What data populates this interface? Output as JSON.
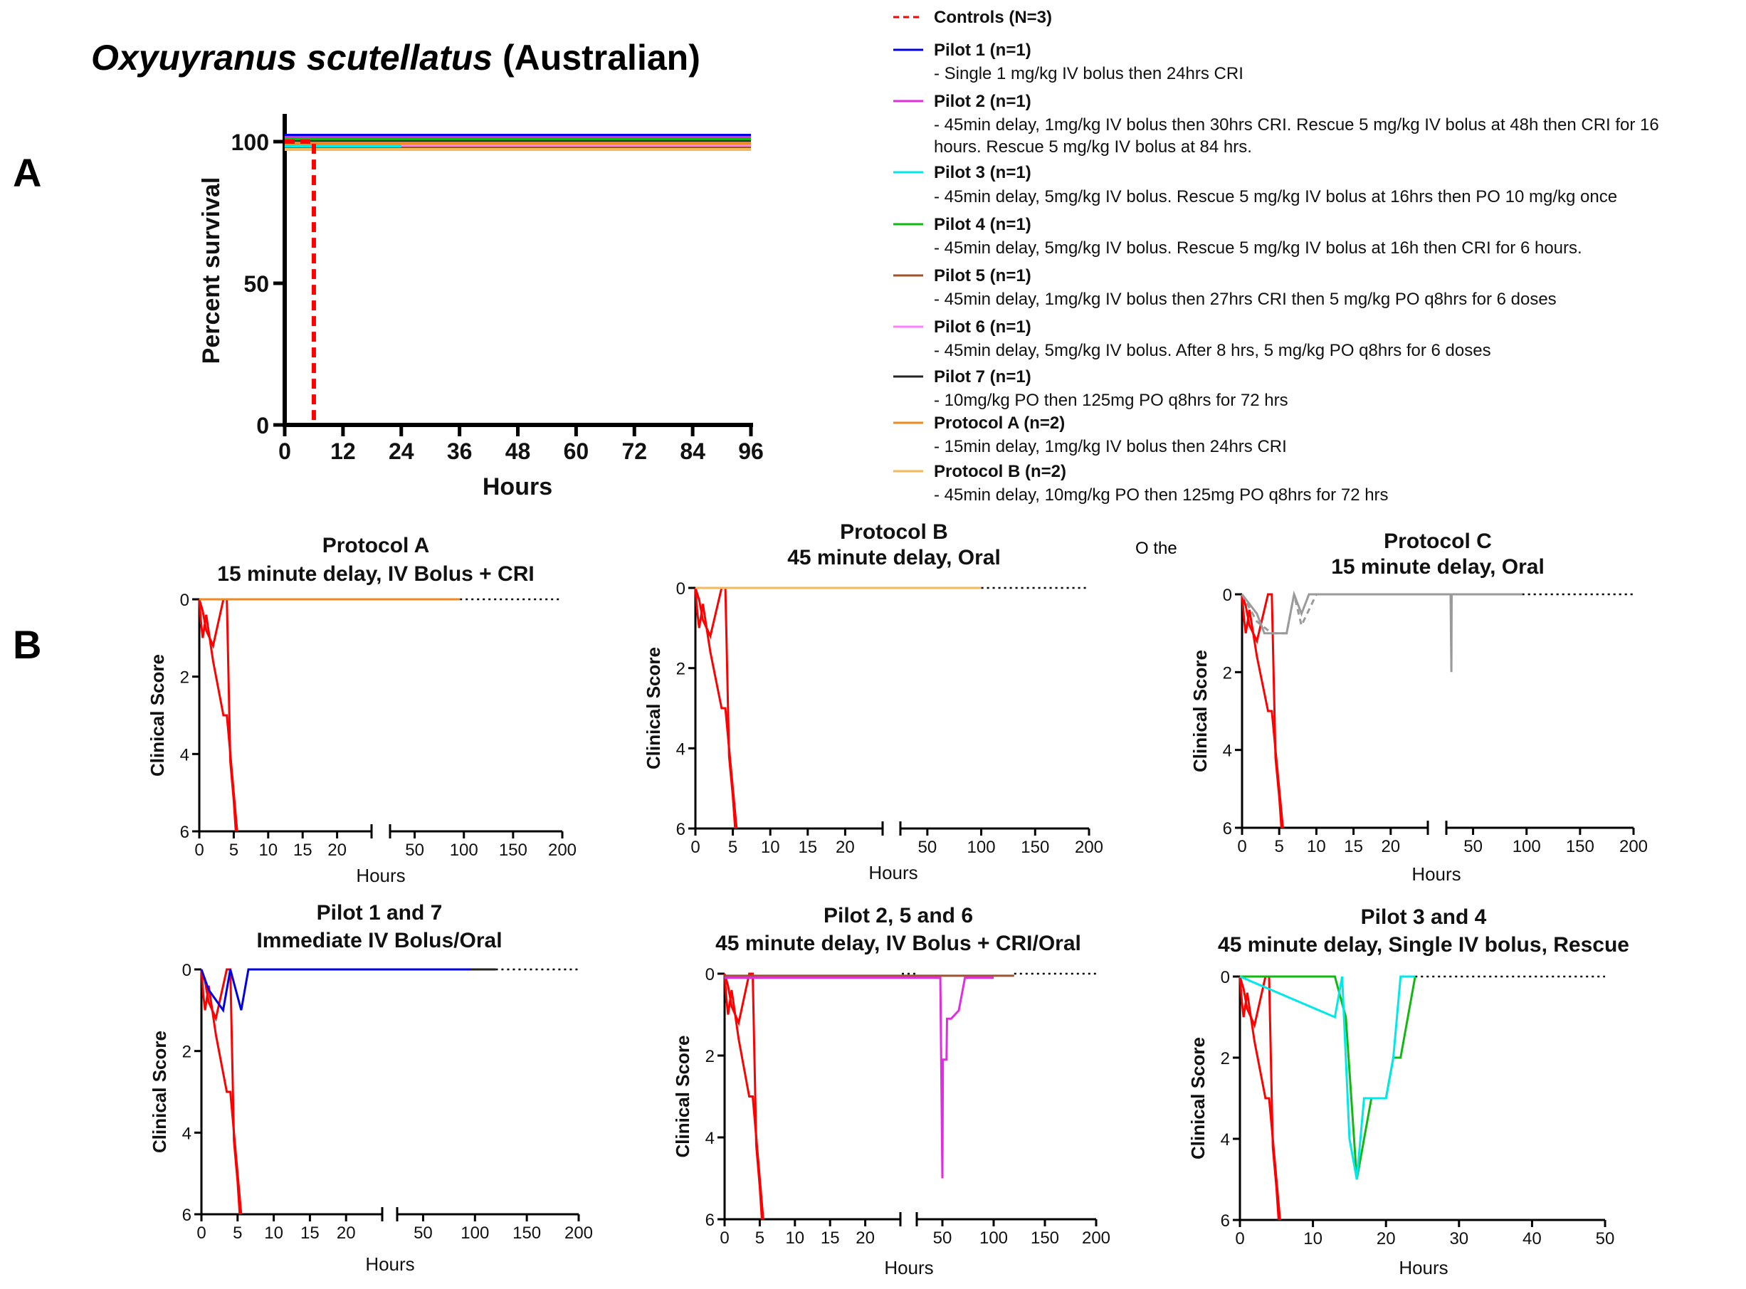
{
  "colors": {
    "controls": "#ff0000",
    "pilot1": "#0000e6",
    "pilot2": "#e02de0",
    "pilot3": "#00e8e8",
    "pilot4": "#12b812",
    "pilot5": "#a0522d",
    "pilot6": "#ff80ff",
    "pilot7": "#222222",
    "protocolA": "#f08a1e",
    "protocolB": "#f5b85a",
    "protocolC": "#9a9a9a"
  },
  "panel_labels": {
    "a": "A",
    "b": "B"
  },
  "title": {
    "species": "Oxyuyranus scutellatus",
    "region": "(Australian)"
  },
  "stray_text": "O the",
  "legend": [
    {
      "key": "controls",
      "name": "Controls (N=3)",
      "detail": [],
      "dashed": true
    },
    {
      "key": "pilot1",
      "name": "Pilot 1 (n=1)",
      "detail": [
        "- Single 1 mg/kg IV bolus then 24hrs CRI"
      ]
    },
    {
      "key": "pilot2",
      "name": "Pilot 2 (n=1)",
      "detail": [
        "- 45min delay, 1mg/kg IV bolus then 30hrs CRI. Rescue 5 mg/kg IV bolus at 48h then CRI for 16",
        "hours. Rescue 5 mg/kg IV bolus at 84 hrs."
      ]
    },
    {
      "key": "pilot3",
      "name": "Pilot 3 (n=1)",
      "detail": [
        "- 45min delay, 5mg/kg IV bolus. Rescue 5 mg/kg IV bolus at 16hrs then PO 10 mg/kg once"
      ]
    },
    {
      "key": "pilot4",
      "name": "Pilot 4 (n=1)",
      "detail": [
        "- 45min delay, 5mg/kg IV bolus. Rescue 5 mg/kg IV bolus at 16h then CRI for 6 hours."
      ]
    },
    {
      "key": "pilot5",
      "name": "Pilot 5 (n=1)",
      "detail": [
        "- 45min delay, 1mg/kg IV bolus then 27hrs CRI then 5 mg/kg PO q8hrs for 6 doses"
      ]
    },
    {
      "key": "pilot6",
      "name": "Pilot 6 (n=1)",
      "detail": [
        "- 45min delay, 5mg/kg IV bolus. After 8 hrs, 5 mg/kg PO q8hrs for 6 doses"
      ]
    },
    {
      "key": "pilot7",
      "name": "Pilot 7 (n=1)",
      "detail": [
        "- 10mg/kg PO then 125mg PO q8hrs for 72 hrs"
      ]
    },
    {
      "key": "protocolA",
      "name": "Protocol A (n=2)",
      "detail": [
        "- 15min delay, 1mg/kg IV bolus then 24hrs CRI"
      ]
    },
    {
      "key": "protocolB",
      "name": "Protocol B (n=2)",
      "detail": [
        "- 45min delay, 10mg/kg PO then 125mg PO q8hrs for 72 hrs"
      ]
    }
  ],
  "chart_data": [
    {
      "id": "survival",
      "type": "line",
      "step": true,
      "title": "Oxyuyranus scutellatus (Australian)",
      "xlabel": "Hours",
      "ylabel": "Percent survival",
      "xlim": [
        0,
        96
      ],
      "ylim": [
        0,
        100
      ],
      "xticks": [
        0,
        12,
        24,
        36,
        48,
        60,
        72,
        84,
        96
      ],
      "yticks": [
        0,
        50,
        100
      ],
      "series": [
        {
          "key": "pilot1",
          "x": [
            0,
            96
          ],
          "y": [
            100,
            100
          ]
        },
        {
          "key": "pilot2",
          "x": [
            0,
            96
          ],
          "y": [
            100,
            100
          ]
        },
        {
          "key": "pilot4",
          "x": [
            0,
            96
          ],
          "y": [
            100,
            100
          ]
        },
        {
          "key": "pilot5",
          "x": [
            0,
            96
          ],
          "y": [
            100,
            100
          ]
        },
        {
          "key": "pilot6",
          "x": [
            0,
            96
          ],
          "y": [
            100,
            100
          ]
        },
        {
          "key": "pilot7",
          "x": [
            0,
            96
          ],
          "y": [
            100,
            100
          ]
        },
        {
          "key": "protocolA",
          "x": [
            0,
            96
          ],
          "y": [
            100,
            100
          ]
        },
        {
          "key": "protocolB",
          "x": [
            0,
            96
          ],
          "y": [
            100,
            100
          ]
        },
        {
          "key": "pilot3",
          "x": [
            0,
            96
          ],
          "y": [
            100,
            100
          ]
        },
        {
          "key": "controls",
          "x": [
            0,
            6,
            6
          ],
          "y": [
            100,
            100,
            0
          ],
          "dashed": true
        }
      ]
    },
    {
      "id": "protA",
      "type": "line",
      "title": [
        "Protocol A",
        "15 minute delay, IV Bolus + CRI"
      ],
      "xlabel": "Hours",
      "ylabel": "Clinical Score",
      "ylim": [
        0,
        6
      ],
      "yticks": [
        0,
        2,
        4,
        6
      ],
      "broken_axis": true,
      "xlim1": [
        0,
        25
      ],
      "xticks1": [
        0,
        5,
        10,
        15,
        20
      ],
      "xlim2": [
        25,
        200
      ],
      "xticks2": [
        50,
        100,
        150,
        200
      ],
      "series": [
        {
          "key": "controls",
          "x": [
            0,
            0.25,
            0.5,
            1,
            2,
            3.5,
            4,
            4.5,
            5,
            5.5
          ],
          "y": [
            0,
            0.6,
            1,
            0.4,
            1.6,
            3,
            3,
            4,
            5,
            6
          ]
        },
        {
          "key": "controls",
          "x": [
            0,
            0.5,
            1,
            2,
            3.5,
            4,
            4.5,
            5,
            5.3
          ],
          "y": [
            0,
            0.3,
            0.8,
            1.2,
            0,
            0,
            4.2,
            5.2,
            6
          ]
        },
        {
          "key": "protocolA",
          "x": [
            0,
            96
          ],
          "y": [
            0,
            0
          ]
        }
      ],
      "dotted_from": 96
    },
    {
      "id": "protB",
      "type": "line",
      "title": [
        "Protocol B",
        "45 minute delay, Oral"
      ],
      "xlabel": "Hours",
      "ylabel": "Clinical Score",
      "ylim": [
        0,
        6
      ],
      "yticks": [
        0,
        2,
        4,
        6
      ],
      "broken_axis": true,
      "xlim1": [
        0,
        25
      ],
      "xticks1": [
        0,
        5,
        10,
        15,
        20
      ],
      "xlim2": [
        25,
        200
      ],
      "xticks2": [
        50,
        100,
        150,
        200
      ],
      "series": [
        {
          "key": "controls",
          "x": [
            0,
            0.25,
            0.5,
            1,
            2,
            3.5,
            4,
            4.5,
            5,
            5.5
          ],
          "y": [
            0,
            0.6,
            1,
            0.4,
            1.6,
            3,
            3,
            4,
            5,
            6
          ]
        },
        {
          "key": "controls",
          "x": [
            0,
            0.5,
            1,
            2,
            3.5,
            4,
            4.5,
            5,
            5.3
          ],
          "y": [
            0,
            0.3,
            0.8,
            1.2,
            0,
            0,
            4.2,
            5.2,
            6
          ]
        },
        {
          "key": "protocolB",
          "x": [
            0,
            100
          ],
          "y": [
            0,
            0
          ]
        }
      ],
      "dotted_from": 100
    },
    {
      "id": "protC",
      "type": "line",
      "title": [
        "Protocol C",
        "15 minute delay, Oral"
      ],
      "xlabel": "Hours",
      "ylabel": "Clinical Score",
      "ylim": [
        0,
        6
      ],
      "yticks": [
        0,
        2,
        4,
        6
      ],
      "broken_axis": true,
      "xlim1": [
        0,
        25
      ],
      "xticks1": [
        0,
        5,
        10,
        15,
        20
      ],
      "xlim2": [
        25,
        200
      ],
      "xticks2": [
        50,
        100,
        150,
        200
      ],
      "series": [
        {
          "key": "controls",
          "x": [
            0,
            0.25,
            0.5,
            1,
            2,
            3.5,
            4,
            4.5,
            5,
            5.5
          ],
          "y": [
            0,
            0.6,
            1,
            0.4,
            1.6,
            3,
            3,
            4,
            5,
            6
          ]
        },
        {
          "key": "controls",
          "x": [
            0,
            0.5,
            1,
            2,
            3.5,
            4,
            4.5,
            5,
            5.3
          ],
          "y": [
            0,
            0.3,
            0.8,
            1.2,
            0,
            0,
            4.2,
            5.2,
            6
          ]
        },
        {
          "key": "protocolC",
          "x": [
            0,
            2,
            3,
            4,
            5,
            6,
            7,
            8,
            9,
            10,
            24,
            26,
            29,
            29.3,
            29.7,
            30,
            31,
            48,
            96
          ],
          "y": [
            0,
            0.5,
            1,
            1,
            1,
            1,
            0,
            0.5,
            0,
            0,
            0,
            0,
            0,
            1,
            2,
            0,
            0,
            0,
            0
          ]
        },
        {
          "key": "protocolC",
          "x": [
            0,
            2,
            4,
            6,
            7,
            8,
            10
          ],
          "y": [
            0,
            0.7,
            1,
            1,
            0,
            0.8,
            0
          ],
          "dashed": true
        }
      ],
      "dotted_from": 96
    },
    {
      "id": "pilot17",
      "type": "line",
      "title": [
        "Pilot 1 and 7",
        "Immediate IV Bolus/Oral"
      ],
      "xlabel": "Hours",
      "ylabel": "Clinical Score",
      "ylim": [
        0,
        6
      ],
      "yticks": [
        0,
        2,
        4,
        6
      ],
      "broken_axis": true,
      "xlim1": [
        0,
        25
      ],
      "xticks1": [
        0,
        5,
        10,
        15,
        20
      ],
      "xlim2": [
        25,
        200
      ],
      "xticks2": [
        50,
        100,
        150,
        200
      ],
      "series": [
        {
          "key": "controls",
          "x": [
            0,
            0.25,
            0.5,
            1,
            2,
            3.5,
            4,
            4.5,
            5,
            5.5
          ],
          "y": [
            0,
            0.6,
            1,
            0.4,
            1.6,
            3,
            3,
            4,
            5,
            6
          ]
        },
        {
          "key": "controls",
          "x": [
            0,
            0.5,
            1,
            2,
            3.5,
            4,
            4.5,
            5,
            5.3
          ],
          "y": [
            0,
            0.3,
            0.8,
            1.2,
            0,
            0,
            4.2,
            5.2,
            6
          ]
        },
        {
          "key": "pilot1",
          "x": [
            0,
            1,
            3,
            4,
            5.5,
            6.5,
            96
          ],
          "y": [
            0,
            0.5,
            1,
            0,
            1,
            0,
            0
          ]
        },
        {
          "key": "pilot7",
          "x": [
            96,
            120
          ],
          "y": [
            0,
            0
          ]
        }
      ],
      "dotted_from": 120
    },
    {
      "id": "pilot256",
      "type": "line",
      "title": [
        "Pilot 2, 5 and 6",
        "45 minute delay, IV Bolus + CRI/Oral"
      ],
      "xlabel": "Hours",
      "ylabel": "Clinical Score",
      "ylim": [
        0,
        6
      ],
      "yticks": [
        0,
        2,
        4,
        6
      ],
      "broken_axis": true,
      "xlim1": [
        0,
        25
      ],
      "xticks1": [
        0,
        5,
        10,
        15,
        20
      ],
      "xlim2": [
        25,
        200
      ],
      "xticks2": [
        50,
        100,
        150,
        200
      ],
      "series": [
        {
          "key": "controls",
          "x": [
            0,
            0.25,
            0.5,
            1,
            2,
            3.5,
            4,
            4.5,
            5,
            5.5
          ],
          "y": [
            0,
            0.6,
            1,
            0.4,
            1.6,
            3,
            3,
            4,
            5,
            6
          ]
        },
        {
          "key": "controls",
          "x": [
            0,
            0.5,
            1,
            2,
            3.5,
            4,
            4.5,
            5,
            5.3
          ],
          "y": [
            0,
            0.3,
            0.8,
            1.2,
            0,
            0,
            4.2,
            5.2,
            6
          ]
        },
        {
          "key": "pilot5",
          "x": [
            0,
            120
          ],
          "y": [
            0.05,
            0.05
          ]
        },
        {
          "key": "pilot2",
          "x": [
            0,
            24,
            25,
            48,
            50,
            50.5,
            54,
            54.5,
            58,
            58.5,
            66,
            72,
            84,
            100
          ],
          "y": [
            0.1,
            0.1,
            0.1,
            0.1,
            5,
            2.1,
            2.1,
            1.1,
            1.1,
            1.1,
            0.9,
            0.1,
            0.1,
            0.1
          ]
        }
      ],
      "dotted_from": 120
    },
    {
      "id": "pilot34",
      "type": "line",
      "title": [
        "Pilot 3 and 4",
        "45 minute delay, Single IV bolus, Rescue"
      ],
      "xlabel": "Hours",
      "ylabel": "Clinical Score",
      "ylim": [
        0,
        6
      ],
      "yticks": [
        0,
        2,
        4,
        6
      ],
      "broken_axis": false,
      "xlim": [
        0,
        50
      ],
      "xticks": [
        0,
        10,
        20,
        30,
        40,
        50
      ],
      "series": [
        {
          "key": "controls",
          "x": [
            0,
            0.25,
            0.5,
            1,
            2,
            3.5,
            4,
            4.5,
            5,
            5.5
          ],
          "y": [
            0,
            0.6,
            1,
            0.4,
            1.6,
            3,
            3,
            4,
            5,
            6
          ]
        },
        {
          "key": "controls",
          "x": [
            0,
            0.5,
            1,
            2,
            3.5,
            4,
            4.5,
            5,
            5.3
          ],
          "y": [
            0,
            0.3,
            0.8,
            1.2,
            0,
            0,
            4.2,
            5.2,
            6
          ]
        },
        {
          "key": "pilot4",
          "x": [
            0,
            13,
            14.5,
            16,
            18,
            20,
            21,
            22,
            24
          ],
          "y": [
            0,
            0,
            1,
            5,
            3,
            3,
            2,
            2,
            0
          ]
        },
        {
          "key": "pilot3",
          "x": [
            0,
            13,
            14,
            15,
            16,
            17,
            18,
            20,
            21,
            22,
            23,
            24
          ],
          "y": [
            0,
            1,
            0,
            4,
            5,
            3,
            3,
            3,
            2,
            0,
            0,
            0
          ]
        }
      ],
      "dotted_from": 24
    }
  ]
}
